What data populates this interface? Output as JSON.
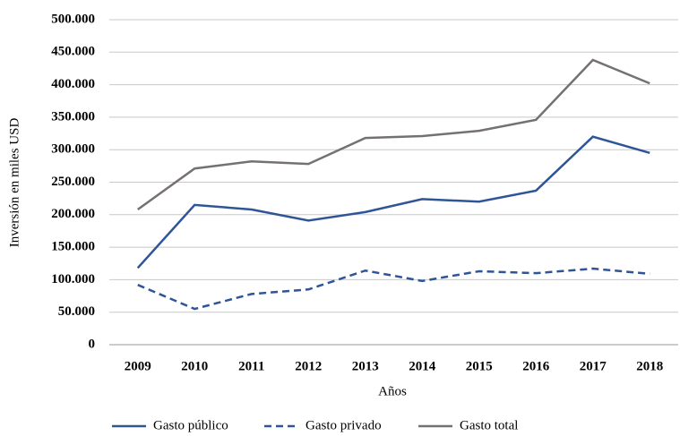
{
  "chart_data": {
    "type": "line",
    "x_label": "Años",
    "y_label": "Inversión en miles USD",
    "categories": [
      "2009",
      "2010",
      "2011",
      "2012",
      "2013",
      "2014",
      "2015",
      "2016",
      "2017",
      "2018"
    ],
    "series": [
      {
        "name": "Gasto público",
        "color": "#2f5597",
        "line_style": "solid",
        "values": [
          118000,
          215000,
          208000,
          191000,
          204000,
          224000,
          220000,
          237000,
          320000,
          295000
        ]
      },
      {
        "name": "Gasto privado",
        "color": "#2f5597",
        "line_style": "dashed",
        "values": [
          92000,
          55000,
          78000,
          85000,
          114000,
          98000,
          113000,
          110000,
          117000,
          109000
        ]
      },
      {
        "name": "Gasto total",
        "color": "#767171",
        "line_style": "solid",
        "values": [
          208000,
          271000,
          282000,
          278000,
          318000,
          321000,
          329000,
          346000,
          438000,
          402000
        ]
      }
    ],
    "ylim": [
      0,
      500000
    ],
    "yticks": [
      0,
      {
        "value": 50000,
        "label": "50.000"
      },
      {
        "value": 100000,
        "label": "100.000"
      },
      {
        "value": 150000,
        "label": "150.000"
      },
      {
        "value": 200000,
        "label": "200.000"
      },
      {
        "value": 250000,
        "label": "250.000"
      },
      {
        "value": 300000,
        "label": "300.000"
      },
      {
        "value": 350000,
        "label": "350.000"
      },
      {
        "value": 400000,
        "label": "400.000"
      },
      {
        "value": 450000,
        "label": "450.000"
      },
      {
        "value": 500000,
        "label": "500.000"
      }
    ],
    "grid": true,
    "legend": "bottom"
  }
}
